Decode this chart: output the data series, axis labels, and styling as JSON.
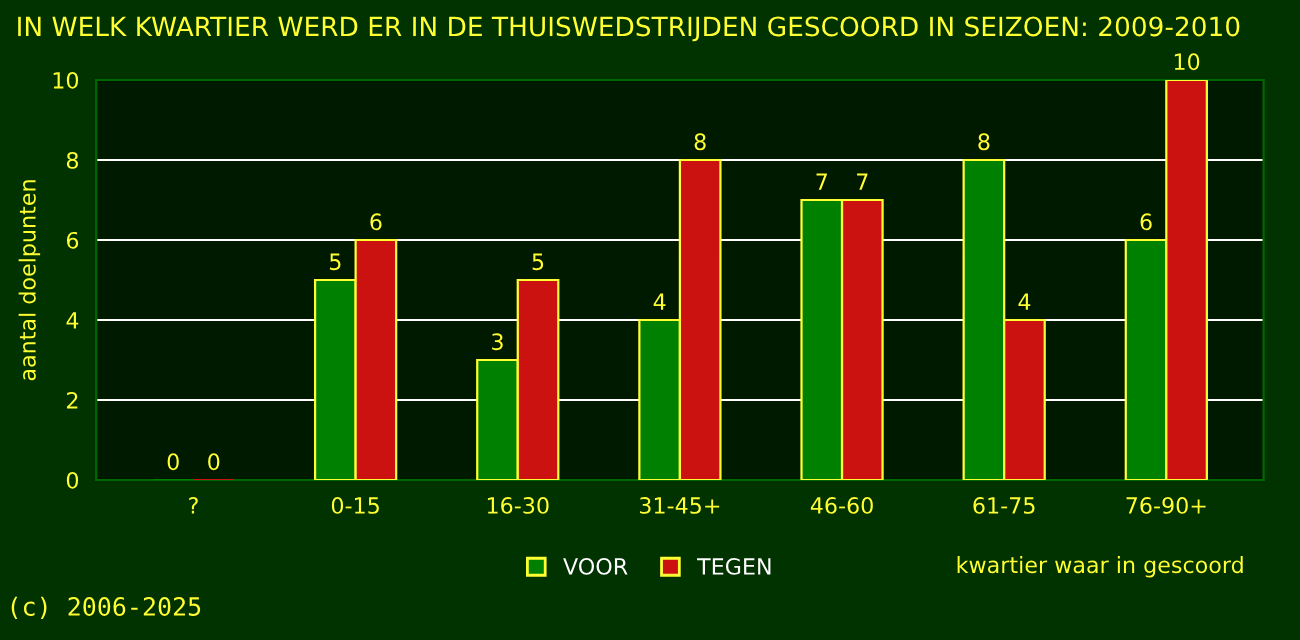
{
  "chart_data": {
    "type": "bar",
    "title": "IN WELK KWARTIER WERD ER IN DE THUISWEDSTRIJDEN GESCOORD IN SEIZOEN: 2009-2010",
    "xlabel": "kwartier waar in gescoord",
    "ylabel": "aantal doelpunten",
    "categories": [
      "?",
      "0-15",
      "16-30",
      "31-45+",
      "46-60",
      "61-75",
      "76-90+"
    ],
    "series": [
      {
        "name": "VOOR",
        "color": "#008000",
        "values": [
          0,
          5,
          3,
          4,
          7,
          8,
          6
        ]
      },
      {
        "name": "TEGEN",
        "color": "#cc1111",
        "values": [
          0,
          6,
          5,
          8,
          7,
          4,
          10
        ]
      }
    ],
    "ylim": [
      0,
      10
    ],
    "yticks": [
      0,
      2,
      4,
      6,
      8,
      10
    ],
    "grid": "y",
    "legend": "bottom",
    "data_labels": true,
    "annotations": [
      "(c) 2006-2025"
    ]
  }
}
